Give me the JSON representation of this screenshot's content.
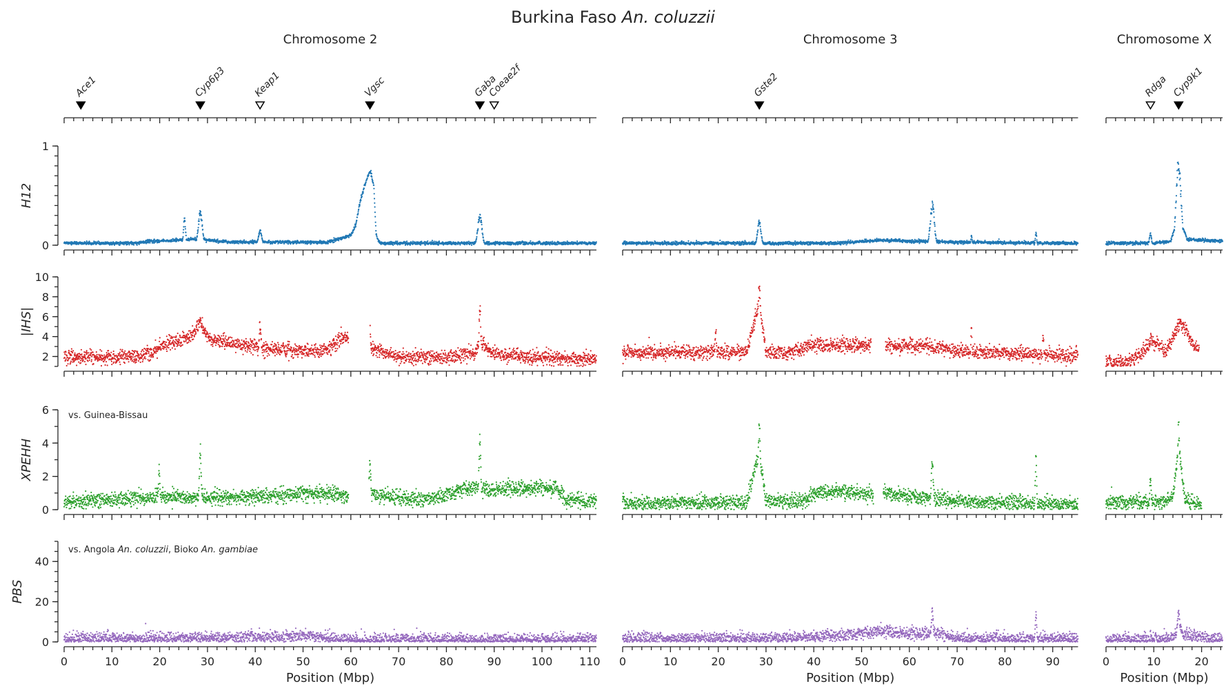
{
  "title_main": "Burkina Faso ",
  "title_species": "An. coluzzii",
  "chromosomes": [
    {
      "label": "Chromosome 2",
      "length": 111.4,
      "ticks": [
        0,
        10,
        20,
        30,
        40,
        50,
        60,
        70,
        80,
        90,
        100,
        110
      ]
    },
    {
      "label": "Chromosome 3",
      "length": 95.3,
      "ticks": [
        0,
        10,
        20,
        30,
        40,
        50,
        60,
        70,
        80,
        90
      ]
    },
    {
      "label": "Chromosome X",
      "length": 24.4,
      "ticks": [
        0,
        10,
        20
      ]
    }
  ],
  "xlabel": "Position (Mbp)",
  "genes": [
    {
      "name": "Ace1",
      "chrom": 0,
      "pos": 3.5,
      "filled": true
    },
    {
      "name": "Cyp6p3",
      "chrom": 0,
      "pos": 28.5,
      "filled": true
    },
    {
      "name": "Keap1",
      "chrom": 0,
      "pos": 41.0,
      "filled": false
    },
    {
      "name": "Vgsc",
      "chrom": 0,
      "pos": 64.0,
      "filled": true
    },
    {
      "name": "Gaba",
      "chrom": 0,
      "pos": 87.0,
      "filled": true
    },
    {
      "name": "Coeae2f",
      "chrom": 0,
      "pos": 90.0,
      "filled": false
    },
    {
      "name": "Gste2",
      "chrom": 1,
      "pos": 28.6,
      "filled": true
    },
    {
      "name": "Rdga",
      "chrom": 2,
      "pos": 9.3,
      "filled": false
    },
    {
      "name": "Cyp9k1",
      "chrom": 2,
      "pos": 15.2,
      "filled": true
    }
  ],
  "annotations": {
    "xpehh_note": "vs. Guinea-Bissau",
    "pbs_note_prefix": "vs. Angola ",
    "pbs_note_sp1": "An. coluzzii",
    "pbs_note_mid": ", Bioko ",
    "pbs_note_sp2": "An. gambiae"
  },
  "chart_data": {
    "type": "scatter",
    "title": "Burkina Faso An. coluzzii",
    "xlabel": "Position (Mbp)",
    "grid": false,
    "panels": [
      {
        "metric": "H12",
        "color": "#1f77b4",
        "ylim": [
          0,
          1
        ],
        "yticks": [
          0,
          1
        ],
        "baseline": [
          {
            "chrom": 0,
            "points": [
              [
                0,
                0.02
              ],
              [
                15,
                0.02
              ],
              [
                18,
                0.04
              ],
              [
                24,
                0.05
              ],
              [
                27,
                0.06
              ],
              [
                30,
                0.05
              ],
              [
                35,
                0.03
              ],
              [
                55,
                0.03
              ],
              [
                58,
                0.07
              ],
              [
                60,
                0.1
              ],
              [
                61,
                0.2
              ],
              [
                62,
                0.45
              ],
              [
                63,
                0.62
              ],
              [
                64,
                0.75
              ],
              [
                64.8,
                0.6
              ],
              [
                65.3,
                0.1
              ],
              [
                66,
                0.02
              ],
              [
                85,
                0.02
              ],
              [
                95,
                0.02
              ],
              [
                111.4,
                0.02
              ]
            ]
          },
          {
            "chrom": 1,
            "points": [
              [
                0,
                0.02
              ],
              [
                45,
                0.02
              ],
              [
                50,
                0.04
              ],
              [
                55,
                0.05
              ],
              [
                60,
                0.04
              ],
              [
                65,
                0.04
              ],
              [
                70,
                0.03
              ],
              [
                95.3,
                0.02
              ]
            ]
          },
          {
            "chrom": 2,
            "points": [
              [
                0,
                0.02
              ],
              [
                10,
                0.02
              ],
              [
                13.5,
                0.04
              ],
              [
                14.6,
                0.2
              ],
              [
                15.2,
                0.6
              ],
              [
                15.9,
                0.2
              ],
              [
                17,
                0.06
              ],
              [
                24.4,
                0.04
              ]
            ]
          }
        ],
        "peaks": [
          {
            "chrom": 0,
            "pos": 25.2,
            "height": 0.3,
            "width": 0.3
          },
          {
            "chrom": 0,
            "pos": 28.5,
            "height": 0.36,
            "width": 0.6
          },
          {
            "chrom": 0,
            "pos": 41.0,
            "height": 0.16,
            "width": 0.5
          },
          {
            "chrom": 0,
            "pos": 64.1,
            "height": 0.8,
            "width": 0.9
          },
          {
            "chrom": 0,
            "pos": 87.0,
            "height": 0.32,
            "width": 0.6
          },
          {
            "chrom": 1,
            "pos": 28.6,
            "height": 0.26,
            "width": 0.5
          },
          {
            "chrom": 1,
            "pos": 64.8,
            "height": 0.45,
            "width": 0.6
          },
          {
            "chrom": 1,
            "pos": 73.0,
            "height": 0.1,
            "width": 0.2
          },
          {
            "chrom": 1,
            "pos": 86.5,
            "height": 0.14,
            "width": 0.2
          },
          {
            "chrom": 2,
            "pos": 9.3,
            "height": 0.13,
            "width": 0.3
          },
          {
            "chrom": 2,
            "pos": 15.2,
            "height": 0.93,
            "width": 0.7
          }
        ],
        "noise": 0.008,
        "gaps": []
      },
      {
        "metric": "|IHS|",
        "color": "#d62728",
        "ylim": [
          1,
          10
        ],
        "yticks": [
          2,
          4,
          6,
          8,
          10
        ],
        "baseline": [
          {
            "chrom": 0,
            "points": [
              [
                0,
                2.0
              ],
              [
                10,
                1.9
              ],
              [
                18,
                2.2
              ],
              [
                20,
                3.0
              ],
              [
                24,
                3.6
              ],
              [
                27,
                4.2
              ],
              [
                28.5,
                5.5
              ],
              [
                30,
                3.8
              ],
              [
                35,
                3.3
              ],
              [
                40,
                3.0
              ],
              [
                42,
                2.8
              ],
              [
                50,
                2.5
              ],
              [
                55,
                2.6
              ],
              [
                58,
                3.8
              ],
              [
                59,
                4.0
              ],
              [
                65,
                2.8
              ],
              [
                70,
                2.0
              ],
              [
                80,
                1.9
              ],
              [
                86,
                2.4
              ],
              [
                87,
                3.5
              ],
              [
                90,
                2.2
              ],
              [
                100,
                1.9
              ],
              [
                111.4,
                1.7
              ]
            ]
          },
          {
            "chrom": 1,
            "points": [
              [
                0,
                2.3
              ],
              [
                10,
                2.5
              ],
              [
                20,
                2.4
              ],
              [
                26,
                2.5
              ],
              [
                28.6,
                7.5
              ],
              [
                30,
                2.5
              ],
              [
                35,
                2.3
              ],
              [
                40,
                3.2
              ],
              [
                45,
                3.1
              ],
              [
                50,
                3.2
              ],
              [
                56,
                3.0
              ],
              [
                60,
                3.1
              ],
              [
                65,
                3.0
              ],
              [
                70,
                2.6
              ],
              [
                80,
                2.3
              ],
              [
                95.3,
                2.1
              ]
            ]
          },
          {
            "chrom": 2,
            "points": [
              [
                0,
                1.4
              ],
              [
                5,
                1.5
              ],
              [
                8,
                2.6
              ],
              [
                9.5,
                3.6
              ],
              [
                11,
                3.2
              ],
              [
                12.5,
                2.4
              ],
              [
                14.5,
                4.5
              ],
              [
                15.5,
                5.5
              ],
              [
                17,
                4.5
              ],
              [
                18.5,
                3.0
              ],
              [
                19.5,
                2.8
              ]
            ]
          }
        ],
        "peaks": [
          {
            "chrom": 0,
            "pos": 41.0,
            "height": 6.0,
            "width": 0.4
          },
          {
            "chrom": 0,
            "pos": 64.0,
            "height": 6.0,
            "width": 0.3
          },
          {
            "chrom": 0,
            "pos": 87.0,
            "height": 7.8,
            "width": 0.3
          },
          {
            "chrom": 1,
            "pos": 28.6,
            "height": 9.5,
            "width": 0.5
          },
          {
            "chrom": 1,
            "pos": 19.5,
            "height": 5.2,
            "width": 0.3
          },
          {
            "chrom": 1,
            "pos": 73.0,
            "height": 5.5,
            "width": 0.2
          },
          {
            "chrom": 1,
            "pos": 88.0,
            "height": 5.0,
            "width": 0.2
          }
        ],
        "noise": 0.35,
        "gaps": [
          {
            "chrom": 0,
            "from": 59.5,
            "to": 64.0
          },
          {
            "chrom": 1,
            "from": 52.0,
            "to": 55.0
          },
          {
            "chrom": 2,
            "from": 19.5,
            "to": 24.4
          }
        ]
      },
      {
        "metric": "XPEHH",
        "color": "#2ca02c",
        "ylim": [
          0,
          6
        ],
        "yticks": [
          0,
          2,
          4,
          6
        ],
        "baseline": [
          {
            "chrom": 0,
            "points": [
              [
                0,
                0.5
              ],
              [
                10,
                0.6
              ],
              [
                20,
                0.8
              ],
              [
                30,
                0.7
              ],
              [
                40,
                0.8
              ],
              [
                50,
                1.0
              ],
              [
                58,
                0.9
              ],
              [
                59,
                0.8
              ],
              [
                65,
                0.9
              ],
              [
                75,
                0.6
              ],
              [
                80,
                0.9
              ],
              [
                85,
                1.3
              ],
              [
                90,
                1.2
              ],
              [
                95,
                1.3
              ],
              [
                103,
                1.3
              ],
              [
                105,
                0.6
              ],
              [
                111.4,
                0.5
              ]
            ]
          },
          {
            "chrom": 1,
            "points": [
              [
                0,
                0.4
              ],
              [
                20,
                0.4
              ],
              [
                26,
                0.5
              ],
              [
                28.6,
                3.5
              ],
              [
                30,
                0.5
              ],
              [
                38,
                0.5
              ],
              [
                40,
                1.0
              ],
              [
                45,
                1.1
              ],
              [
                50,
                1.0
              ],
              [
                52,
                1.0
              ],
              [
                55,
                1.0
              ],
              [
                60,
                0.8
              ],
              [
                65,
                0.7
              ],
              [
                70,
                0.5
              ],
              [
                95.3,
                0.3
              ]
            ]
          },
          {
            "chrom": 2,
            "points": [
              [
                0,
                0.4
              ],
              [
                12,
                0.5
              ],
              [
                14,
                0.7
              ],
              [
                15.2,
                3.8
              ],
              [
                16.5,
                0.7
              ],
              [
                19,
                0.3
              ],
              [
                20,
                0.3
              ]
            ]
          }
        ],
        "peaks": [
          {
            "chrom": 0,
            "pos": 28.5,
            "height": 4.0,
            "width": 0.3
          },
          {
            "chrom": 0,
            "pos": 64.0,
            "height": 3.1,
            "width": 0.3
          },
          {
            "chrom": 0,
            "pos": 87.0,
            "height": 4.6,
            "width": 0.3
          },
          {
            "chrom": 0,
            "pos": 19.9,
            "height": 2.9,
            "width": 0.2
          },
          {
            "chrom": 1,
            "pos": 28.6,
            "height": 5.4,
            "width": 0.4
          },
          {
            "chrom": 1,
            "pos": 64.8,
            "height": 3.3,
            "width": 0.3
          },
          {
            "chrom": 1,
            "pos": 86.5,
            "height": 3.6,
            "width": 0.2
          },
          {
            "chrom": 2,
            "pos": 9.3,
            "height": 2.1,
            "width": 0.2
          },
          {
            "chrom": 2,
            "pos": 15.2,
            "height": 5.5,
            "width": 0.4
          }
        ],
        "noise": 0.22,
        "gaps": [
          {
            "chrom": 0,
            "from": 59.5,
            "to": 63.8
          },
          {
            "chrom": 1,
            "from": 52.5,
            "to": 54.5
          },
          {
            "chrom": 2,
            "from": 20.0,
            "to": 24.4
          }
        ]
      },
      {
        "metric": "PBS",
        "color": "#9467bd",
        "ylim": [
          0,
          50
        ],
        "yticks": [
          0,
          20,
          40
        ],
        "baseline": [
          {
            "chrom": 0,
            "points": [
              [
                0,
                1.5
              ],
              [
                20,
                2.0
              ],
              [
                30,
                2.2
              ],
              [
                40,
                2.5
              ],
              [
                50,
                3.0
              ],
              [
                58,
                1.5
              ],
              [
                62,
                0.6
              ],
              [
                68,
                1.2
              ],
              [
                75,
                1.5
              ],
              [
                85,
                1.0
              ],
              [
                95,
                1.2
              ],
              [
                111.4,
                1.4
              ]
            ]
          },
          {
            "chrom": 1,
            "points": [
              [
                0,
                1.8
              ],
              [
                30,
                1.8
              ],
              [
                40,
                2.5
              ],
              [
                50,
                4.0
              ],
              [
                55,
                5.5
              ],
              [
                60,
                4.0
              ],
              [
                65,
                4.5
              ],
              [
                70,
                2.0
              ],
              [
                95.3,
                1.5
              ]
            ]
          },
          {
            "chrom": 2,
            "points": [
              [
                0,
                1.2
              ],
              [
                12,
                1.5
              ],
              [
                14.5,
                3.0
              ],
              [
                15.2,
                10.0
              ],
              [
                16,
                4.0
              ],
              [
                20,
                2.0
              ],
              [
                24.4,
                1.5
              ]
            ]
          }
        ],
        "peaks": [
          {
            "chrom": 1,
            "pos": 64.8,
            "height": 17.0,
            "width": 0.3
          },
          {
            "chrom": 1,
            "pos": 86.5,
            "height": 16.5,
            "width": 0.2
          },
          {
            "chrom": 2,
            "pos": 15.2,
            "height": 18.0,
            "width": 0.3
          }
        ],
        "noise": 1.5,
        "gaps": []
      }
    ]
  }
}
